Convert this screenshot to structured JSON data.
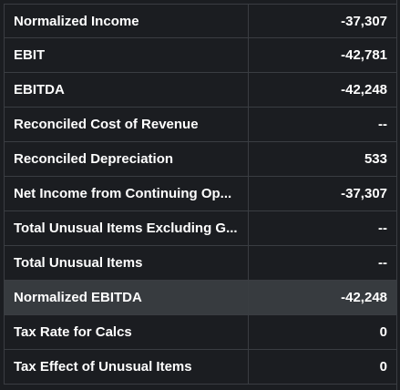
{
  "rows": [
    {
      "label": "Normalized Income",
      "value": "-37,307",
      "highlighted": false
    },
    {
      "label": "EBIT",
      "value": "-42,781",
      "highlighted": false
    },
    {
      "label": "EBITDA",
      "value": "-42,248",
      "highlighted": false
    },
    {
      "label": "Reconciled Cost of Revenue",
      "value": "--",
      "highlighted": false
    },
    {
      "label": "Reconciled Depreciation",
      "value": "533",
      "highlighted": false
    },
    {
      "label": "Net Income from Continuing Op...",
      "value": "-37,307",
      "highlighted": false
    },
    {
      "label": "Total Unusual Items Excluding G...",
      "value": "--",
      "highlighted": false
    },
    {
      "label": "Total Unusual Items",
      "value": "--",
      "highlighted": false
    },
    {
      "label": "Normalized EBITDA",
      "value": "-42,248",
      "highlighted": true
    },
    {
      "label": "Tax Rate for Calcs",
      "value": "0",
      "highlighted": false
    },
    {
      "label": "Tax Effect of Unusual Items",
      "value": "0",
      "highlighted": false
    }
  ]
}
